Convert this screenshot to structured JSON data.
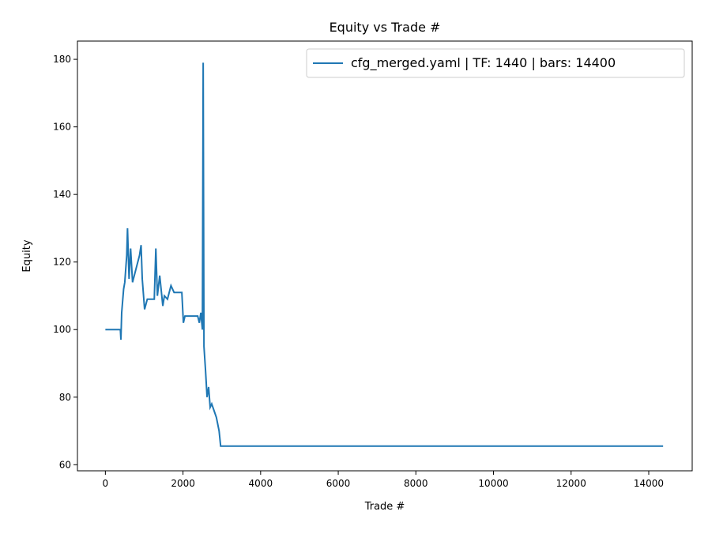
{
  "chart_data": {
    "type": "line",
    "title": "Equity vs Trade #",
    "xlabel": "Trade #",
    "ylabel": "Equity",
    "x": [
      0,
      386,
      400,
      420,
      470,
      500,
      550,
      570,
      610,
      650,
      700,
      790,
      880,
      920,
      950,
      1010,
      1080,
      1260,
      1300,
      1340,
      1400,
      1480,
      1520,
      1600,
      1690,
      1770,
      1970,
      2010,
      2050,
      2380,
      2420,
      2460,
      2500,
      2520,
      2540,
      2580,
      2620,
      2660,
      2700,
      2740,
      2800,
      2860,
      2930,
      2970,
      14370
    ],
    "series": [
      {
        "name": "cfg_merged.yaml | TF: 1440 | bars: 14400",
        "color": "#1f77b4",
        "values": [
          100,
          100,
          97,
          105,
          112,
          114,
          122,
          130,
          115,
          124,
          114,
          118,
          122,
          125,
          115,
          106,
          109,
          109,
          124,
          110,
          116,
          107,
          110,
          109,
          113,
          111,
          111,
          102,
          104,
          104,
          102,
          105,
          100,
          179,
          95,
          88,
          80,
          83,
          77,
          78,
          76,
          74,
          70,
          65.5,
          65.5
        ]
      }
    ],
    "xlim": [
      -720,
      15120
    ],
    "ylim": [
      58.2,
      185.4
    ],
    "xticks": [
      0,
      2000,
      4000,
      6000,
      8000,
      10000,
      12000,
      14000
    ],
    "yticks": [
      60,
      80,
      100,
      120,
      140,
      160,
      180
    ],
    "legend": "upper right"
  }
}
